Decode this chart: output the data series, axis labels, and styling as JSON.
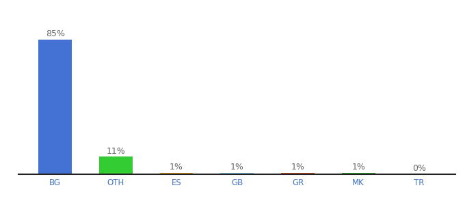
{
  "categories": [
    "BG",
    "OTH",
    "ES",
    "GB",
    "GR",
    "MK",
    "TR"
  ],
  "values": [
    85,
    11,
    1,
    1,
    1,
    1,
    0
  ],
  "labels": [
    "85%",
    "11%",
    "1%",
    "1%",
    "1%",
    "1%",
    "0%"
  ],
  "colors": [
    "#4472d4",
    "#33cc33",
    "#e8a020",
    "#7ecce8",
    "#c85020",
    "#33aa33",
    "#cccccc"
  ],
  "background_color": "#ffffff",
  "bar_width": 0.55,
  "ylim": [
    0,
    97
  ],
  "label_fontsize": 9,
  "tick_fontsize": 8.5,
  "tick_color": "#4472c4",
  "label_color": "#666666",
  "spine_color": "#222222"
}
